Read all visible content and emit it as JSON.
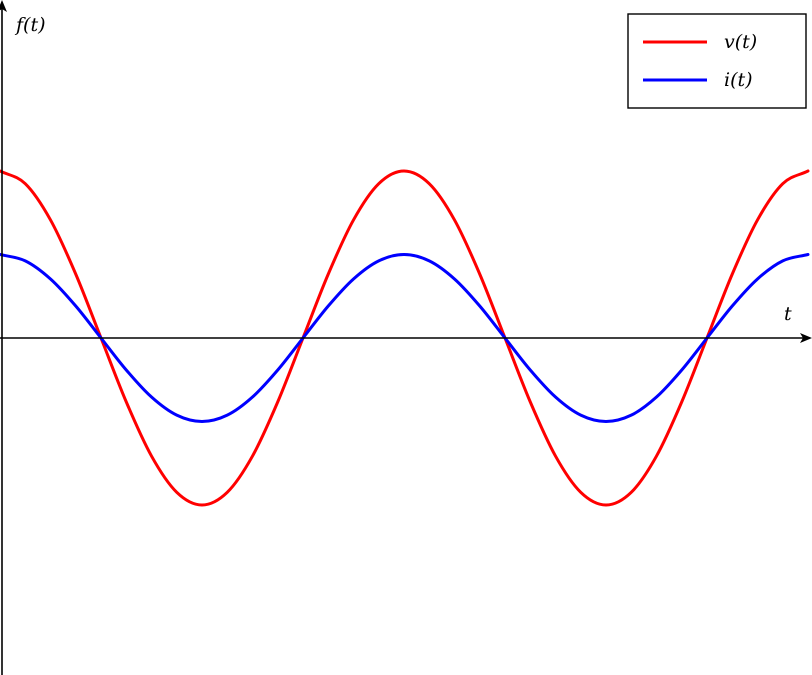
{
  "chart_data": {
    "type": "line",
    "ylabel": "f(t)",
    "xlabel": "t",
    "xlim": [
      0,
      8
    ],
    "ylim": [
      -4,
      4
    ],
    "grid": false,
    "legend_position": "top-right",
    "series": [
      {
        "name": "v(t)",
        "color": "#ff0000",
        "x": [
          0,
          0.25,
          0.5,
          0.75,
          1,
          1.25,
          1.5,
          1.75,
          2,
          2.25,
          2.5,
          2.75,
          3,
          3.25,
          3.5,
          3.75,
          4,
          4.25,
          4.5,
          4.75,
          5,
          5.25,
          5.5,
          5.75,
          6,
          6.25,
          6.5,
          6.75,
          7,
          7.25,
          7.5,
          7.75,
          8
        ],
        "y": [
          2,
          1.848,
          1.414,
          0.765,
          0,
          -0.765,
          -1.414,
          -1.848,
          -2,
          -1.848,
          -1.414,
          -0.765,
          0,
          0.765,
          1.414,
          1.848,
          2,
          1.848,
          1.414,
          0.765,
          0,
          -0.765,
          -1.414,
          -1.848,
          -2,
          -1.848,
          -1.414,
          -0.765,
          0,
          0.765,
          1.414,
          1.848,
          2
        ]
      },
      {
        "name": "i(t)",
        "color": "#0000ff",
        "x": [
          0,
          0.25,
          0.5,
          0.75,
          1,
          1.25,
          1.5,
          1.75,
          2,
          2.25,
          2.5,
          2.75,
          3,
          3.25,
          3.5,
          3.75,
          4,
          4.25,
          4.5,
          4.75,
          5,
          5.25,
          5.5,
          5.75,
          6,
          6.25,
          6.5,
          6.75,
          7,
          7.25,
          7.5,
          7.75,
          8
        ],
        "y": [
          1,
          0.924,
          0.707,
          0.383,
          0,
          -0.383,
          -0.707,
          -0.924,
          -1,
          -0.924,
          -0.707,
          -0.383,
          0,
          0.383,
          0.707,
          0.924,
          1,
          0.924,
          0.707,
          0.383,
          0,
          -0.383,
          -0.707,
          -0.924,
          -1,
          -0.924,
          -0.707,
          -0.383,
          0,
          0.383,
          0.707,
          0.924,
          1
        ]
      }
    ]
  }
}
